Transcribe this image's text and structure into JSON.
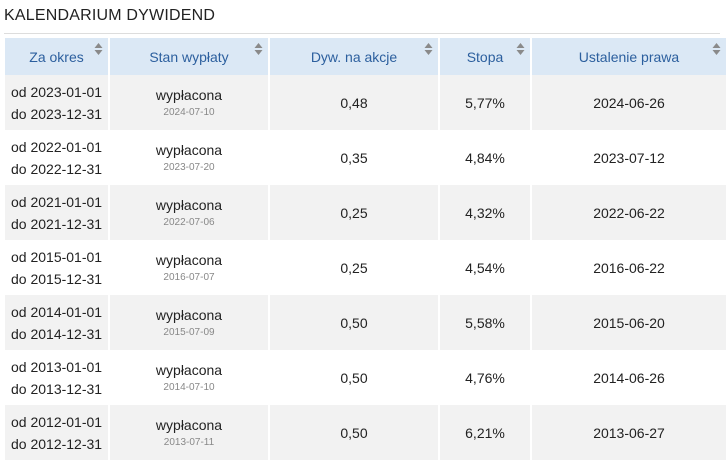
{
  "header": {
    "title": "KALENDARIUM DYWIDEND"
  },
  "table": {
    "columns": [
      "Za okres",
      "Stan wypłaty",
      "Dyw. na akcje",
      "Stopa",
      "Ustalenie prawa"
    ],
    "rows": [
      {
        "from": "od 2023-01-01",
        "to": "do 2023-12-31",
        "status": "wypłacona",
        "paid": "2024-07-10",
        "dividend": "0,48",
        "yield": "5,77%",
        "record": "2024-06-26"
      },
      {
        "from": "od 2022-01-01",
        "to": "do 2022-12-31",
        "status": "wypłacona",
        "paid": "2023-07-20",
        "dividend": "0,35",
        "yield": "4,84%",
        "record": "2023-07-12"
      },
      {
        "from": "od 2021-01-01",
        "to": "do 2021-12-31",
        "status": "wypłacona",
        "paid": "2022-07-06",
        "dividend": "0,25",
        "yield": "4,32%",
        "record": "2022-06-22"
      },
      {
        "from": "od 2015-01-01",
        "to": "do 2015-12-31",
        "status": "wypłacona",
        "paid": "2016-07-07",
        "dividend": "0,25",
        "yield": "4,54%",
        "record": "2016-06-22"
      },
      {
        "from": "od 2014-01-01",
        "to": "do 2014-12-31",
        "status": "wypłacona",
        "paid": "2015-07-09",
        "dividend": "0,50",
        "yield": "5,58%",
        "record": "2015-06-20"
      },
      {
        "from": "od 2013-01-01",
        "to": "do 2013-12-31",
        "status": "wypłacona",
        "paid": "2014-07-10",
        "dividend": "0,50",
        "yield": "4,76%",
        "record": "2014-06-26"
      },
      {
        "from": "od 2012-01-01",
        "to": "do 2012-12-31",
        "status": "wypłacona",
        "paid": "2013-07-11",
        "dividend": "0,50",
        "yield": "6,21%",
        "record": "2013-06-27"
      }
    ]
  }
}
